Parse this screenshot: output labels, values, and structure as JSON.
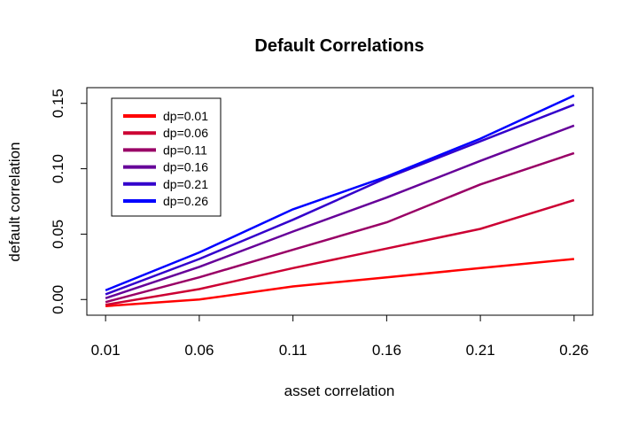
{
  "chart_data": {
    "type": "line",
    "title": "Default Correlations",
    "xlabel": "asset correlation",
    "ylabel": "default correlation",
    "x": [
      0.01,
      0.06,
      0.11,
      0.16,
      0.21,
      0.26
    ],
    "x_tick_labels": [
      "0.01",
      "0.06",
      "0.11",
      "0.16",
      "0.21",
      "0.26"
    ],
    "y_ticks": [
      0.0,
      0.05,
      0.1,
      0.15
    ],
    "y_tick_labels": [
      "0.00",
      "0.05",
      "0.10",
      "0.15"
    ],
    "xlim": [
      0.0,
      0.27
    ],
    "ylim": [
      -0.012,
      0.162
    ],
    "grid": false,
    "legend_position": "top-left",
    "series": [
      {
        "name": "dp=0.01",
        "color": "#ff0000",
        "values": [
          -0.005,
          0.0,
          0.01,
          0.017,
          0.024,
          0.031
        ]
      },
      {
        "name": "dp=0.06",
        "color": "#cc0033",
        "values": [
          -0.004,
          0.008,
          0.024,
          0.039,
          0.054,
          0.076
        ]
      },
      {
        "name": "dp=0.11",
        "color": "#990066",
        "values": [
          -0.002,
          0.017,
          0.038,
          0.059,
          0.088,
          0.112
        ]
      },
      {
        "name": "dp=0.16",
        "color": "#660099",
        "values": [
          0.001,
          0.025,
          0.052,
          0.078,
          0.106,
          0.133
        ]
      },
      {
        "name": "dp=0.21",
        "color": "#3300cc",
        "values": [
          0.004,
          0.031,
          0.061,
          0.093,
          0.121,
          0.149
        ]
      },
      {
        "name": "dp=0.26",
        "color": "#0000ff",
        "values": [
          0.007,
          0.036,
          0.069,
          0.094,
          0.123,
          0.156
        ]
      }
    ]
  }
}
